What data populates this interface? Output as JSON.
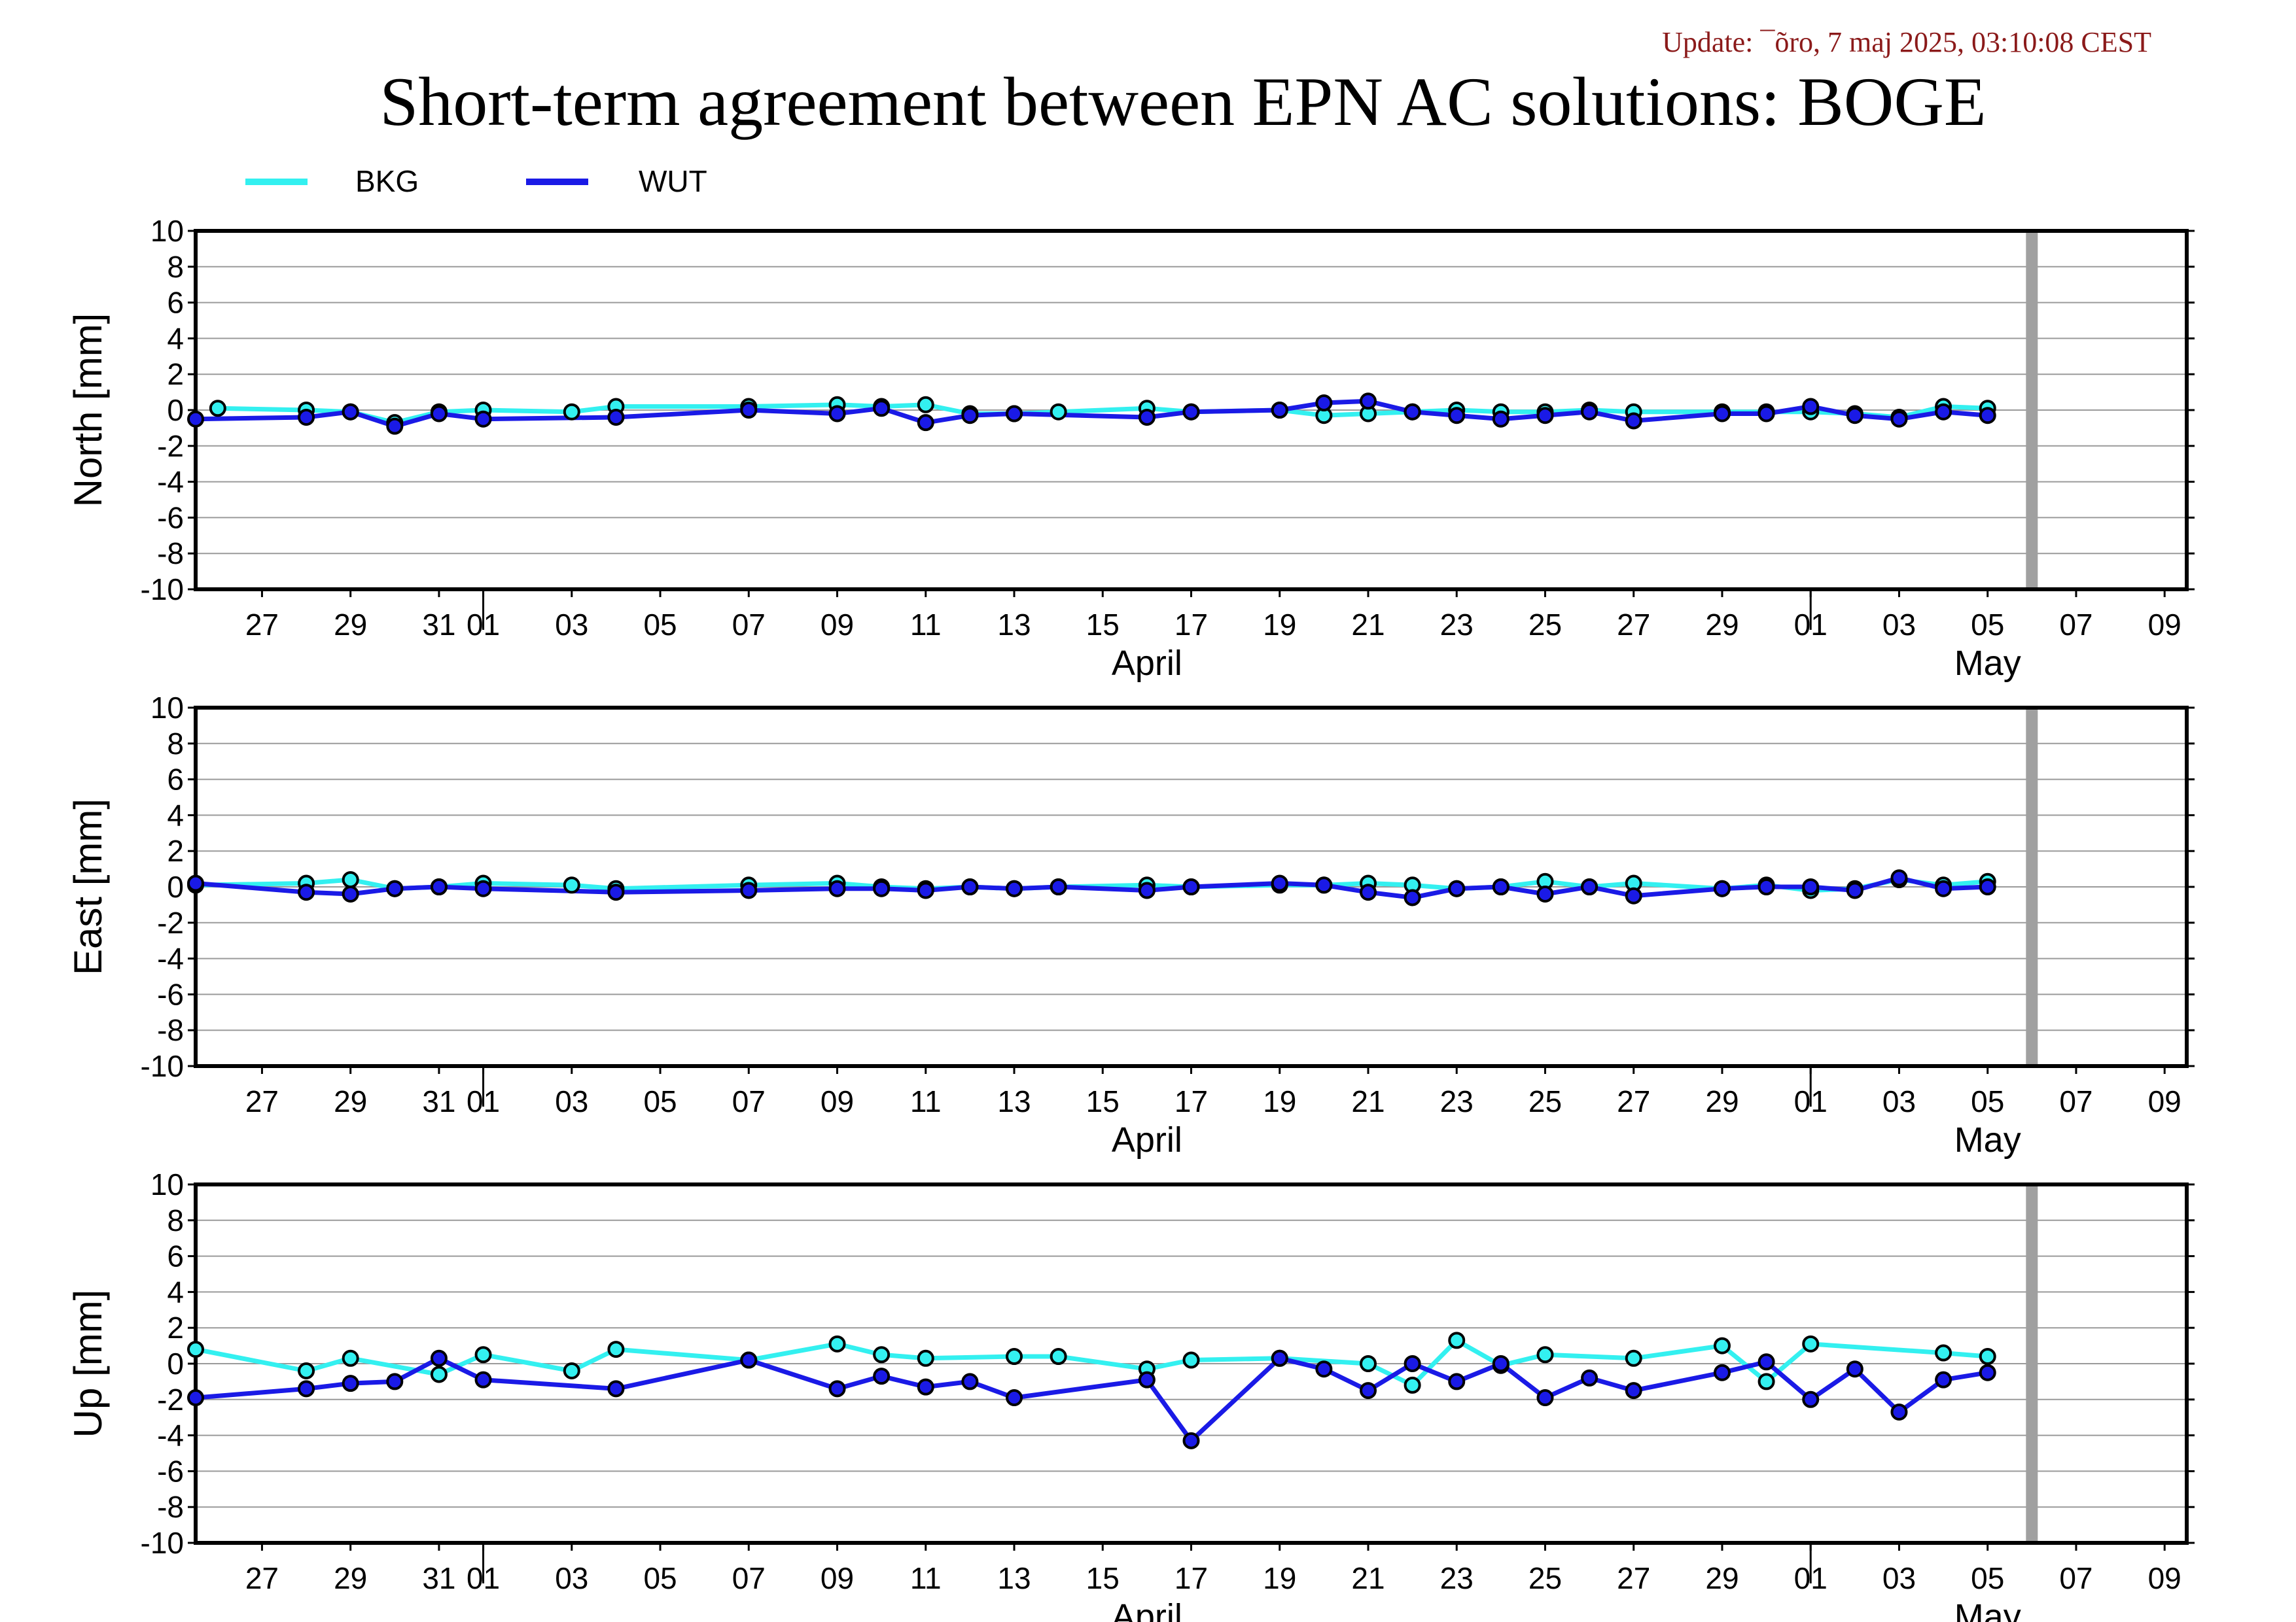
{
  "update_text": "Update: ¯õro, 7 maj 2025, 03:10:08 CEST",
  "title": "Short-term agreement between EPN AC solutions: BOGE",
  "legend": [
    {
      "name": "BKG",
      "color": "#33f0f0"
    },
    {
      "name": "WUT",
      "color": "#1a1ae6"
    }
  ],
  "chart_data": {
    "type": "line",
    "x_axis": {
      "unit": "day",
      "range": [
        "2025-03-25 12:00",
        "2025-05-09 12:00"
      ],
      "tick_labels": [
        {
          "date": "2025-03-27",
          "label": "27"
        },
        {
          "date": "2025-03-29",
          "label": "29"
        },
        {
          "date": "2025-03-31",
          "label": "31"
        },
        {
          "date": "2025-04-01",
          "label": "01"
        },
        {
          "date": "2025-04-03",
          "label": "03"
        },
        {
          "date": "2025-04-05",
          "label": "05"
        },
        {
          "date": "2025-04-07",
          "label": "07"
        },
        {
          "date": "2025-04-09",
          "label": "09"
        },
        {
          "date": "2025-04-11",
          "label": "11"
        },
        {
          "date": "2025-04-13",
          "label": "13"
        },
        {
          "date": "2025-04-15",
          "label": "15"
        },
        {
          "date": "2025-04-17",
          "label": "17"
        },
        {
          "date": "2025-04-19",
          "label": "19"
        },
        {
          "date": "2025-04-21",
          "label": "21"
        },
        {
          "date": "2025-04-23",
          "label": "23"
        },
        {
          "date": "2025-04-25",
          "label": "25"
        },
        {
          "date": "2025-04-27",
          "label": "27"
        },
        {
          "date": "2025-04-29",
          "label": "29"
        },
        {
          "date": "2025-05-01",
          "label": "01"
        },
        {
          "date": "2025-05-03",
          "label": "03"
        },
        {
          "date": "2025-05-05",
          "label": "05"
        },
        {
          "date": "2025-05-07",
          "label": "07"
        },
        {
          "date": "2025-05-09",
          "label": "09"
        }
      ],
      "month_labels": [
        {
          "date": "2025-04-16",
          "label": "April"
        },
        {
          "date": "2025-05-05",
          "label": "May"
        }
      ],
      "month_boundaries": [
        "2025-04-01",
        "2025-05-01"
      ],
      "current_day_marker": "2025-05-06"
    },
    "panels": [
      {
        "ylabel": "North [mm]",
        "ylim": [
          -10,
          10
        ],
        "yticks": [
          10,
          8,
          6,
          4,
          2,
          0,
          -2,
          -4,
          -6,
          -8,
          -10
        ],
        "series": [
          {
            "name": "BKG",
            "points": [
              [
                "2025-03-26",
                0.1
              ],
              [
                "2025-03-28",
                0.0
              ],
              [
                "2025-03-29",
                -0.1
              ],
              [
                "2025-03-30",
                -0.7
              ],
              [
                "2025-03-31",
                -0.1
              ],
              [
                "2025-04-01",
                0.0
              ],
              [
                "2025-04-03",
                -0.1
              ],
              [
                "2025-04-04",
                0.2
              ],
              [
                "2025-04-07",
                0.2
              ],
              [
                "2025-04-09",
                0.3
              ],
              [
                "2025-04-10",
                0.2
              ],
              [
                "2025-04-11",
                0.3
              ],
              [
                "2025-04-12",
                -0.2
              ],
              [
                "2025-04-13",
                -0.2
              ],
              [
                "2025-04-14",
                -0.1
              ],
              [
                "2025-04-16",
                0.1
              ],
              [
                "2025-04-17",
                -0.1
              ],
              [
                "2025-04-19",
                0.0
              ],
              [
                "2025-04-20",
                -0.3
              ],
              [
                "2025-04-21",
                -0.2
              ],
              [
                "2025-04-22",
                -0.1
              ],
              [
                "2025-04-23",
                0.0
              ],
              [
                "2025-04-24",
                -0.1
              ],
              [
                "2025-04-25",
                -0.1
              ],
              [
                "2025-04-26",
                0.0
              ],
              [
                "2025-04-27",
                -0.1
              ],
              [
                "2025-04-29",
                -0.1
              ],
              [
                "2025-04-30",
                -0.1
              ],
              [
                "2025-05-01",
                -0.1
              ],
              [
                "2025-05-02",
                -0.2
              ],
              [
                "2025-05-03",
                -0.4
              ],
              [
                "2025-05-04",
                0.2
              ],
              [
                "2025-05-05",
                0.1
              ]
            ]
          },
          {
            "name": "WUT",
            "points": [
              [
                "2025-03-25 12:00",
                -0.5
              ],
              [
                "2025-03-28",
                -0.4
              ],
              [
                "2025-03-29",
                -0.1
              ],
              [
                "2025-03-30",
                -0.9
              ],
              [
                "2025-03-31",
                -0.2
              ],
              [
                "2025-04-01",
                -0.5
              ],
              [
                "2025-04-04",
                -0.4
              ],
              [
                "2025-04-07",
                0.0
              ],
              [
                "2025-04-09",
                -0.2
              ],
              [
                "2025-04-10",
                0.1
              ],
              [
                "2025-04-11",
                -0.7
              ],
              [
                "2025-04-12",
                -0.3
              ],
              [
                "2025-04-13",
                -0.2
              ],
              [
                "2025-04-16",
                -0.4
              ],
              [
                "2025-04-17",
                -0.1
              ],
              [
                "2025-04-19",
                0.0
              ],
              [
                "2025-04-20",
                0.4
              ],
              [
                "2025-04-21",
                0.5
              ],
              [
                "2025-04-22",
                -0.1
              ],
              [
                "2025-04-23",
                -0.3
              ],
              [
                "2025-04-24",
                -0.5
              ],
              [
                "2025-04-25",
                -0.3
              ],
              [
                "2025-04-26",
                -0.1
              ],
              [
                "2025-04-27",
                -0.6
              ],
              [
                "2025-04-29",
                -0.2
              ],
              [
                "2025-04-30",
                -0.2
              ],
              [
                "2025-05-01",
                0.2
              ],
              [
                "2025-05-02",
                -0.3
              ],
              [
                "2025-05-03",
                -0.5
              ],
              [
                "2025-05-04",
                -0.1
              ],
              [
                "2025-05-05",
                -0.3
              ]
            ]
          }
        ]
      },
      {
        "ylabel": "East [mm]",
        "ylim": [
          -10,
          10
        ],
        "yticks": [
          10,
          8,
          6,
          4,
          2,
          0,
          -2,
          -4,
          -6,
          -8,
          -10
        ],
        "series": [
          {
            "name": "BKG",
            "points": [
              [
                "2025-03-25 12:00",
                0.1
              ],
              [
                "2025-03-28",
                0.2
              ],
              [
                "2025-03-29",
                0.4
              ],
              [
                "2025-03-30",
                -0.1
              ],
              [
                "2025-03-31",
                0.0
              ],
              [
                "2025-04-01",
                0.2
              ],
              [
                "2025-04-03",
                0.1
              ],
              [
                "2025-04-04",
                -0.1
              ],
              [
                "2025-04-07",
                0.1
              ],
              [
                "2025-04-09",
                0.2
              ],
              [
                "2025-04-10",
                0.0
              ],
              [
                "2025-04-11",
                -0.1
              ],
              [
                "2025-04-12",
                0.0
              ],
              [
                "2025-04-13",
                -0.1
              ],
              [
                "2025-04-14",
                0.0
              ],
              [
                "2025-04-16",
                0.1
              ],
              [
                "2025-04-17",
                0.0
              ],
              [
                "2025-04-19",
                0.1
              ],
              [
                "2025-04-20",
                0.1
              ],
              [
                "2025-04-21",
                0.2
              ],
              [
                "2025-04-22",
                0.1
              ],
              [
                "2025-04-23",
                -0.1
              ],
              [
                "2025-04-24",
                0.0
              ],
              [
                "2025-04-25",
                0.3
              ],
              [
                "2025-04-26",
                0.0
              ],
              [
                "2025-04-27",
                0.2
              ],
              [
                "2025-04-29",
                -0.1
              ],
              [
                "2025-04-30",
                0.1
              ],
              [
                "2025-05-01",
                -0.2
              ],
              [
                "2025-05-02",
                -0.1
              ],
              [
                "2025-05-03",
                0.4
              ],
              [
                "2025-05-04",
                0.1
              ],
              [
                "2025-05-05",
                0.3
              ]
            ]
          },
          {
            "name": "WUT",
            "points": [
              [
                "2025-03-25 12:00",
                0.2
              ],
              [
                "2025-03-28",
                -0.3
              ],
              [
                "2025-03-29",
                -0.4
              ],
              [
                "2025-03-30",
                -0.1
              ],
              [
                "2025-03-31",
                0.0
              ],
              [
                "2025-04-01",
                -0.1
              ],
              [
                "2025-04-04",
                -0.3
              ],
              [
                "2025-04-07",
                -0.2
              ],
              [
                "2025-04-09",
                -0.1
              ],
              [
                "2025-04-10",
                -0.1
              ],
              [
                "2025-04-11",
                -0.2
              ],
              [
                "2025-04-12",
                0.0
              ],
              [
                "2025-04-13",
                -0.1
              ],
              [
                "2025-04-14",
                0.0
              ],
              [
                "2025-04-16",
                -0.2
              ],
              [
                "2025-04-17",
                0.0
              ],
              [
                "2025-04-19",
                0.2
              ],
              [
                "2025-04-20",
                0.1
              ],
              [
                "2025-04-21",
                -0.3
              ],
              [
                "2025-04-22",
                -0.6
              ],
              [
                "2025-04-23",
                -0.1
              ],
              [
                "2025-04-24",
                0.0
              ],
              [
                "2025-04-25",
                -0.4
              ],
              [
                "2025-04-26",
                0.0
              ],
              [
                "2025-04-27",
                -0.5
              ],
              [
                "2025-04-29",
                -0.1
              ],
              [
                "2025-04-30",
                0.0
              ],
              [
                "2025-05-01",
                0.0
              ],
              [
                "2025-05-02",
                -0.2
              ],
              [
                "2025-05-03",
                0.5
              ],
              [
                "2025-05-04",
                -0.1
              ],
              [
                "2025-05-05",
                0.0
              ]
            ]
          }
        ]
      },
      {
        "ylabel": "Up [mm]",
        "ylim": [
          -10,
          10
        ],
        "yticks": [
          10,
          8,
          6,
          4,
          2,
          0,
          -2,
          -4,
          -6,
          -8,
          -10
        ],
        "series": [
          {
            "name": "BKG",
            "points": [
              [
                "2025-03-25 12:00",
                0.8
              ],
              [
                "2025-03-28",
                -0.4
              ],
              [
                "2025-03-29",
                0.3
              ],
              [
                "2025-03-31",
                -0.6
              ],
              [
                "2025-04-01",
                0.5
              ],
              [
                "2025-04-03",
                -0.4
              ],
              [
                "2025-04-04",
                0.8
              ],
              [
                "2025-04-07",
                0.2
              ],
              [
                "2025-04-09",
                1.1
              ],
              [
                "2025-04-10",
                0.5
              ],
              [
                "2025-04-11",
                0.3
              ],
              [
                "2025-04-13",
                0.4
              ],
              [
                "2025-04-14",
                0.4
              ],
              [
                "2025-04-16",
                -0.3
              ],
              [
                "2025-04-17",
                0.2
              ],
              [
                "2025-04-19",
                0.3
              ],
              [
                "2025-04-21",
                0.0
              ],
              [
                "2025-04-22",
                -1.2
              ],
              [
                "2025-04-23",
                1.3
              ],
              [
                "2025-04-24",
                -0.1
              ],
              [
                "2025-04-25",
                0.5
              ],
              [
                "2025-04-27",
                0.3
              ],
              [
                "2025-04-29",
                1.0
              ],
              [
                "2025-04-30",
                -1.0
              ],
              [
                "2025-05-01",
                1.1
              ],
              [
                "2025-05-04",
                0.6
              ],
              [
                "2025-05-05",
                0.4
              ]
            ]
          },
          {
            "name": "WUT",
            "points": [
              [
                "2025-03-25 12:00",
                -1.9
              ],
              [
                "2025-03-28",
                -1.4
              ],
              [
                "2025-03-29",
                -1.1
              ],
              [
                "2025-03-30",
                -1.0
              ],
              [
                "2025-03-31",
                0.3
              ],
              [
                "2025-04-01",
                -0.9
              ],
              [
                "2025-04-04",
                -1.4
              ],
              [
                "2025-04-07",
                0.2
              ],
              [
                "2025-04-09",
                -1.4
              ],
              [
                "2025-04-10",
                -0.7
              ],
              [
                "2025-04-11",
                -1.3
              ],
              [
                "2025-04-12",
                -1.0
              ],
              [
                "2025-04-13",
                -1.9
              ],
              [
                "2025-04-16",
                -0.9
              ],
              [
                "2025-04-17",
                -4.3
              ],
              [
                "2025-04-19",
                0.3
              ],
              [
                "2025-04-20",
                -0.3
              ],
              [
                "2025-04-21",
                -1.5
              ],
              [
                "2025-04-22",
                0.0
              ],
              [
                "2025-04-23",
                -1.0
              ],
              [
                "2025-04-24",
                0.0
              ],
              [
                "2025-04-25",
                -1.9
              ],
              [
                "2025-04-26",
                -0.8
              ],
              [
                "2025-04-27",
                -1.5
              ],
              [
                "2025-04-29",
                -0.5
              ],
              [
                "2025-04-30",
                0.1
              ],
              [
                "2025-05-01",
                -2.0
              ],
              [
                "2025-05-02",
                -0.3
              ],
              [
                "2025-05-03",
                -2.7
              ],
              [
                "2025-05-04",
                -0.9
              ],
              [
                "2025-05-05",
                -0.5
              ]
            ]
          }
        ]
      }
    ]
  }
}
